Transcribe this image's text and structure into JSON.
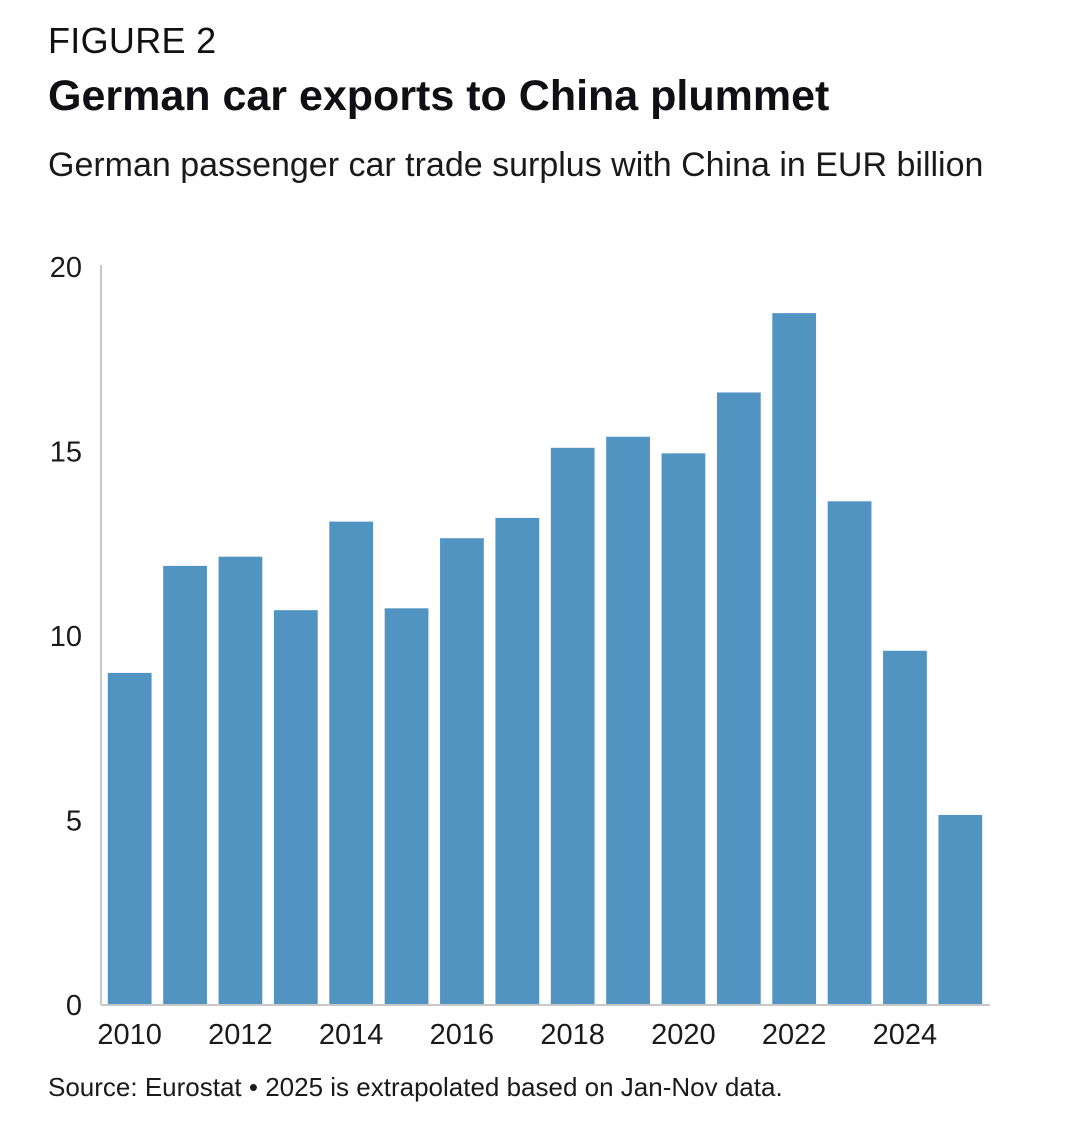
{
  "header": {
    "figure_label": "FIGURE 2",
    "title": "German car exports to China plummet",
    "subtitle": "German passenger car trade surplus with China in EUR billion"
  },
  "footer": {
    "source": "Source: Eurostat • 2025 is extrapolated based on Jan-Nov data."
  },
  "colors": {
    "bar": "#5193c1",
    "axis": "#c8c8c8"
  },
  "chart_data": {
    "type": "bar",
    "title": "German car exports to China plummet",
    "subtitle": "German passenger car trade surplus with China in EUR billion",
    "xlabel": "",
    "ylabel": "EUR billion",
    "categories": [
      "2010",
      "2011",
      "2012",
      "2013",
      "2014",
      "2015",
      "2016",
      "2017",
      "2018",
      "2019",
      "2020",
      "2021",
      "2022",
      "2023",
      "2024",
      "2025"
    ],
    "values": [
      9.0,
      11.9,
      12.15,
      10.7,
      13.1,
      10.75,
      12.65,
      13.2,
      15.1,
      15.4,
      14.95,
      16.6,
      18.75,
      13.65,
      9.6,
      5.15
    ],
    "x_tick_labels": [
      "2010",
      "2012",
      "2014",
      "2016",
      "2018",
      "2020",
      "2022",
      "2024"
    ],
    "y_ticks": [
      0,
      5,
      10,
      15,
      20
    ],
    "ylim": [
      0,
      20
    ],
    "grid": false,
    "legend": "none"
  }
}
